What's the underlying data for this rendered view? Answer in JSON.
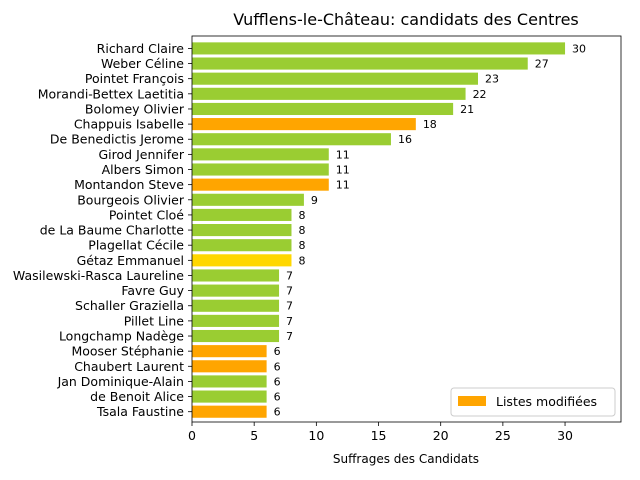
{
  "chart_data": {
    "type": "bar",
    "orientation": "horizontal",
    "title": "Vufflens-le-Château: candidats des Centres",
    "xlabel": "Suffrages des Candidats",
    "ylabel": "",
    "xlim": [
      0,
      34.5
    ],
    "xticks": [
      0,
      5,
      10,
      15,
      20,
      25,
      30
    ],
    "grid": false,
    "legend": {
      "placement": "bottom-right",
      "entries": [
        {
          "label": "Listes modifiées",
          "color": "#FFA500"
        }
      ]
    },
    "colors": {
      "default": "#9ACD32",
      "modified": "#FFA500",
      "highlight": "#FFD700"
    },
    "categories": [
      "Richard Claire",
      "Weber Céline",
      "Pointet François",
      "Morandi-Bettex Laetitia",
      "Bolomey Olivier",
      "Chappuis Isabelle",
      "De Benedictis Jerome",
      "Girod Jennifer",
      "Albers Simon",
      "Montandon Steve",
      "Bourgeois Olivier",
      "Pointet Cloé",
      "de La Baume Charlotte",
      "Plagellat Cécile",
      "Gétaz Emmanuel",
      "Wasilewski-Rasca Laureline",
      "Favre Guy",
      "Schaller Graziella",
      "Pillet Line",
      "Longchamp Nadège",
      "Mooser Stéphanie",
      "Chaubert Laurent",
      "Jan Dominique-Alain",
      "de Benoit Alice",
      "Tsala Faustine"
    ],
    "values": [
      30,
      27,
      23,
      22,
      21,
      18,
      16,
      11,
      11,
      11,
      9,
      8,
      8,
      8,
      8,
      7,
      7,
      7,
      7,
      7,
      6,
      6,
      6,
      6,
      6
    ],
    "bar_colors": [
      "#9ACD32",
      "#9ACD32",
      "#9ACD32",
      "#9ACD32",
      "#9ACD32",
      "#FFA500",
      "#9ACD32",
      "#9ACD32",
      "#9ACD32",
      "#FFA500",
      "#9ACD32",
      "#9ACD32",
      "#9ACD32",
      "#9ACD32",
      "#FFD700",
      "#9ACD32",
      "#9ACD32",
      "#9ACD32",
      "#9ACD32",
      "#9ACD32",
      "#FFA500",
      "#FFA500",
      "#9ACD32",
      "#9ACD32",
      "#FFA500"
    ]
  }
}
